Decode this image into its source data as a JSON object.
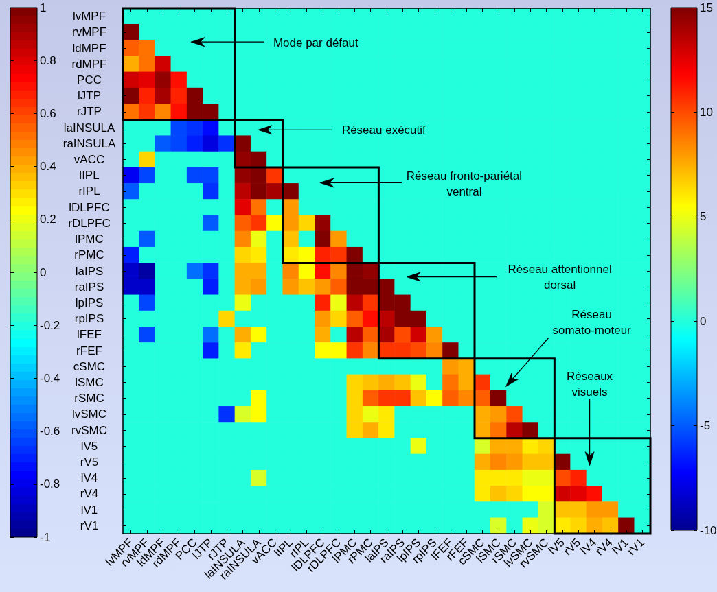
{
  "chart_data": {
    "type": "heatmap",
    "categories": [
      "lvMPF",
      "rvMPF",
      "ldMPF",
      "rdMPF",
      "PCC",
      "lJTP",
      "rJTP",
      "laINSULA",
      "raINSULA",
      "vACC",
      "lIPL",
      "rIPL",
      "lDLPFC",
      "rDLPFC",
      "lPMC",
      "rPMC",
      "laIPS",
      "raIPS",
      "lpIPS",
      "rpIPS",
      "lFEF",
      "rFEF",
      "cSMC",
      "lSMC",
      "rSMC",
      "lvSMC",
      "rvSMC",
      "lV5",
      "rV5",
      "lV4",
      "rV4",
      "lV1",
      "rV1"
    ],
    "y_categories": [
      "lvMPF",
      "rvMPF",
      "ldMPF",
      "rdMPF",
      "PCC",
      "lJTP",
      "rJTP",
      "laINSULA",
      "raINSULA",
      "vACC",
      "lIPL",
      "rIPL",
      "lDLPFC",
      "rDLPFC",
      "lPMC",
      "rPMC",
      "laIPS",
      "raIPS",
      "lpIPS",
      "rpIPS",
      "lFEF",
      "rFEF",
      "cSMC",
      "lSMC",
      "rSMC",
      "lvSMC",
      "rvSMC",
      "lV5",
      "rV5",
      "lV4",
      "rV4",
      "lV1",
      "rV1"
    ],
    "cells": [
      [
        0,
        0,
        0,
        0,
        0,
        0,
        0,
        0,
        0,
        0,
        0,
        0,
        0,
        0,
        0,
        0,
        0,
        0,
        0,
        0,
        0,
        0,
        0,
        0,
        0,
        0,
        0,
        0,
        0,
        0,
        0,
        0,
        0
      ],
      [
        15,
        0,
        0,
        0,
        0,
        0,
        0,
        0,
        0,
        0,
        0,
        0,
        0,
        0,
        0,
        0,
        0,
        0,
        0,
        0,
        0,
        0,
        0,
        0,
        0,
        0,
        0,
        0,
        0,
        0,
        0,
        0,
        0
      ],
      [
        9.5,
        9,
        0,
        0,
        0,
        0,
        0,
        0,
        0,
        0,
        0,
        0,
        0,
        0,
        0,
        0,
        0,
        0,
        0,
        0,
        0,
        0,
        0,
        0,
        0,
        0,
        0,
        0,
        0,
        0,
        0,
        0,
        0
      ],
      [
        7.5,
        9,
        13,
        0,
        0,
        0,
        0,
        0,
        0,
        0,
        0,
        0,
        0,
        0,
        0,
        0,
        0,
        0,
        0,
        0,
        0,
        0,
        0,
        0,
        0,
        0,
        0,
        0,
        0,
        0,
        0,
        0,
        0
      ],
      [
        13,
        12.5,
        14.5,
        11.5,
        0,
        0,
        0,
        0,
        0,
        0,
        0,
        0,
        0,
        0,
        0,
        0,
        0,
        0,
        0,
        0,
        0,
        0,
        0,
        0,
        0,
        0,
        0,
        0,
        0,
        0,
        0,
        0,
        0
      ],
      [
        15,
        11,
        14,
        11,
        15,
        0,
        0,
        0,
        0,
        0,
        0,
        0,
        0,
        0,
        0,
        0,
        0,
        0,
        0,
        0,
        0,
        0,
        0,
        0,
        0,
        0,
        0,
        0,
        0,
        0,
        0,
        0,
        0
      ],
      [
        9,
        10.5,
        8.5,
        11.5,
        15,
        15,
        0,
        0,
        0,
        0,
        0,
        0,
        0,
        0,
        0,
        0,
        0,
        0,
        0,
        0,
        0,
        0,
        0,
        0,
        0,
        0,
        0,
        0,
        0,
        0,
        0,
        0,
        0
      ],
      [
        0,
        0,
        0,
        -5.5,
        -6,
        -7,
        0,
        0,
        0,
        0,
        0,
        0,
        0,
        0,
        0,
        0,
        0,
        0,
        0,
        0,
        0,
        0,
        0,
        0,
        0,
        0,
        0,
        0,
        0,
        0,
        0,
        0,
        0
      ],
      [
        0,
        0,
        -5,
        -5.5,
        -6.5,
        -8,
        -6,
        15,
        0,
        0,
        0,
        0,
        0,
        0,
        0,
        0,
        0,
        0,
        0,
        0,
        0,
        0,
        0,
        0,
        0,
        0,
        0,
        0,
        0,
        0,
        0,
        0,
        0
      ],
      [
        0,
        6.5,
        0,
        0,
        0,
        0,
        0,
        14.5,
        15,
        0,
        0,
        0,
        0,
        0,
        0,
        0,
        0,
        0,
        0,
        0,
        0,
        0,
        0,
        0,
        0,
        0,
        0,
        0,
        0,
        0,
        0,
        0,
        0
      ],
      [
        -7.5,
        -5.5,
        0,
        0,
        -5.5,
        -5.5,
        0,
        14.5,
        15,
        10.5,
        0,
        0,
        0,
        0,
        0,
        0,
        0,
        0,
        0,
        0,
        0,
        0,
        0,
        0,
        0,
        0,
        0,
        0,
        0,
        0,
        0,
        0,
        0
      ],
      [
        -5,
        0,
        0,
        0,
        0,
        -6,
        0,
        13.5,
        15,
        14,
        15,
        0,
        0,
        0,
        0,
        0,
        0,
        0,
        0,
        0,
        0,
        0,
        0,
        0,
        0,
        0,
        0,
        0,
        0,
        0,
        0,
        0,
        0
      ],
      [
        0,
        0,
        0,
        0,
        0,
        0,
        0,
        12.5,
        9,
        0,
        8,
        0,
        0,
        0,
        0,
        0,
        0,
        0,
        0,
        0,
        0,
        0,
        0,
        0,
        0,
        0,
        0,
        0,
        0,
        0,
        0,
        0,
        0
      ],
      [
        0,
        0,
        0,
        0,
        0,
        -5,
        0,
        9.5,
        10.5,
        5.5,
        8,
        6.5,
        14.5,
        0,
        0,
        0,
        0,
        0,
        0,
        0,
        0,
        0,
        0,
        0,
        0,
        0,
        0,
        0,
        0,
        0,
        0,
        0,
        0
      ],
      [
        0,
        -5,
        0,
        0,
        0,
        0,
        0,
        8.5,
        5,
        0,
        7,
        0,
        15,
        8,
        0,
        0,
        0,
        0,
        0,
        0,
        0,
        0,
        0,
        0,
        0,
        0,
        0,
        0,
        0,
        0,
        0,
        0,
        0
      ],
      [
        -6.5,
        0,
        0,
        0,
        0,
        0,
        0,
        6.5,
        6,
        0,
        6,
        5.5,
        11,
        10.5,
        15,
        0,
        0,
        0,
        0,
        0,
        0,
        0,
        0,
        0,
        0,
        0,
        0,
        0,
        0,
        0,
        0,
        0,
        0
      ],
      [
        -8.5,
        -9.5,
        0,
        0,
        -4.5,
        -6,
        0,
        7.5,
        7.5,
        0,
        8.5,
        5.5,
        11.5,
        8.5,
        15,
        14.5,
        0,
        0,
        0,
        0,
        0,
        0,
        0,
        0,
        0,
        0,
        0,
        0,
        0,
        0,
        0,
        0,
        0
      ],
      [
        -8.5,
        -8.5,
        0,
        0,
        0,
        -6.5,
        0,
        7.5,
        8,
        0,
        8,
        7,
        8,
        9.5,
        15,
        15,
        15,
        0,
        0,
        0,
        0,
        0,
        0,
        0,
        0,
        0,
        0,
        0,
        0,
        0,
        0,
        0,
        0
      ],
      [
        0,
        -5.5,
        0,
        0,
        0,
        0,
        0,
        5,
        0,
        0,
        0,
        0,
        11,
        5,
        13.5,
        10.5,
        15,
        15,
        0,
        0,
        0,
        0,
        0,
        0,
        0,
        0,
        0,
        0,
        0,
        0,
        0,
        0,
        0
      ],
      [
        0,
        0,
        0,
        0,
        0,
        0,
        6.5,
        0,
        0,
        0,
        0,
        0,
        8,
        6.5,
        9.5,
        11.5,
        13.5,
        15,
        15,
        0,
        0,
        0,
        0,
        0,
        0,
        0,
        0,
        0,
        0,
        0,
        0,
        0,
        0
      ],
      [
        0,
        -5.5,
        0,
        0,
        0,
        -4.5,
        0,
        7.5,
        5.5,
        0,
        0,
        0,
        7.5,
        0,
        13.5,
        9.5,
        14,
        10,
        13,
        8,
        0,
        0,
        0,
        0,
        0,
        0,
        0,
        0,
        0,
        0,
        0,
        0,
        0
      ],
      [
        0,
        0,
        0,
        0,
        0,
        -6.5,
        0,
        6,
        0,
        0,
        0,
        0,
        5.5,
        5.5,
        10.5,
        8.5,
        10.5,
        10.5,
        10,
        8.5,
        15,
        0,
        0,
        0,
        0,
        0,
        0,
        0,
        0,
        0,
        0,
        0,
        0
      ],
      [
        0,
        0,
        0,
        0,
        0,
        0,
        0,
        0,
        0,
        0,
        0,
        0,
        0,
        0,
        0,
        0,
        0,
        0,
        0,
        0,
        8,
        7.5,
        0,
        0,
        0,
        0,
        0,
        0,
        0,
        0,
        0,
        0,
        0
      ],
      [
        0,
        0,
        0,
        0,
        0,
        0,
        0,
        0,
        0,
        0,
        0,
        0,
        0,
        0,
        6.5,
        7,
        7.5,
        7,
        5,
        0,
        9,
        7.5,
        10.5,
        0,
        0,
        0,
        0,
        0,
        0,
        0,
        0,
        0,
        0
      ],
      [
        0,
        0,
        0,
        0,
        0,
        0,
        0,
        0,
        5.5,
        0,
        0,
        0,
        0,
        0,
        6.5,
        9.5,
        10.5,
        10.5,
        7,
        5.5,
        9.5,
        8.5,
        9.5,
        15,
        0,
        0,
        0,
        0,
        0,
        0,
        0,
        0,
        0
      ],
      [
        0,
        0,
        0,
        0,
        0,
        0,
        -6,
        4.5,
        5.5,
        0,
        0,
        0,
        0,
        0,
        6.5,
        5,
        6,
        0,
        0,
        0,
        0,
        0,
        7.5,
        8,
        10,
        0,
        0,
        0,
        0,
        0,
        0,
        0,
        0
      ],
      [
        0,
        0,
        0,
        0,
        0,
        0,
        0,
        0,
        0,
        0,
        0,
        0,
        0,
        0,
        6.5,
        7.5,
        6,
        0,
        0,
        0,
        0,
        0,
        7.5,
        9,
        13.5,
        15,
        0,
        0,
        0,
        0,
        0,
        0,
        0
      ],
      [
        0,
        0,
        0,
        0,
        0,
        0,
        0,
        0,
        0,
        0,
        0,
        0,
        0,
        0,
        0,
        0,
        0,
        0,
        5,
        0,
        0,
        0,
        4.5,
        7.5,
        7.5,
        6,
        6.5,
        0,
        0,
        0,
        0,
        0,
        0
      ],
      [
        0,
        0,
        0,
        0,
        0,
        0,
        0,
        0,
        0,
        0,
        0,
        0,
        0,
        0,
        0,
        0,
        0,
        0,
        0,
        0,
        0,
        0,
        7.5,
        8.5,
        8,
        7,
        7,
        15,
        0,
        0,
        0,
        0,
        0
      ],
      [
        0,
        0,
        0,
        0,
        0,
        0,
        0,
        0,
        4.5,
        0,
        0,
        0,
        0,
        0,
        0,
        0,
        0,
        0,
        0,
        0,
        0,
        0,
        6,
        6,
        6,
        5,
        5,
        10,
        11,
        0,
        0,
        0,
        0
      ],
      [
        0,
        0,
        0,
        0,
        0,
        0,
        0,
        0,
        0,
        0,
        0,
        0,
        0,
        0,
        0,
        0,
        0,
        0,
        0,
        0,
        0,
        0,
        6,
        7,
        6.5,
        5.5,
        5.5,
        13,
        12.5,
        11.5,
        0,
        0,
        0
      ],
      [
        0,
        0,
        0,
        0,
        0,
        0,
        0,
        0,
        0,
        0,
        0,
        0,
        0,
        0,
        0,
        0,
        0,
        0,
        0,
        0,
        0,
        0,
        0,
        0,
        0,
        0,
        4.5,
        7,
        7,
        8,
        8,
        0,
        0
      ],
      [
        0,
        0,
        0,
        0,
        0,
        0,
        0,
        0,
        0,
        0,
        0,
        0,
        0,
        0,
        0,
        0,
        0,
        0,
        0,
        0,
        0,
        0,
        0,
        4.5,
        0,
        5,
        4.5,
        6,
        6.5,
        7.5,
        7,
        15,
        0
      ]
    ],
    "clim": [
      -10,
      15
    ],
    "cticks": [
      -10,
      -5,
      0,
      5,
      10,
      15
    ],
    "y2lim": [
      -1,
      1
    ],
    "y2ticks": [
      -1,
      -0.8,
      -0.6,
      -0.4,
      -0.2,
      0,
      0.2,
      0.4,
      0.6,
      0.8,
      1
    ],
    "annotations": [
      "Mode par défaut",
      "Réseau exécutif",
      "Réseau fronto-pariétal\nventral",
      "Réseau attentionnel\ndorsal",
      "Réseau\nsomato-moteur",
      "Réseaux\nvisuels"
    ]
  }
}
